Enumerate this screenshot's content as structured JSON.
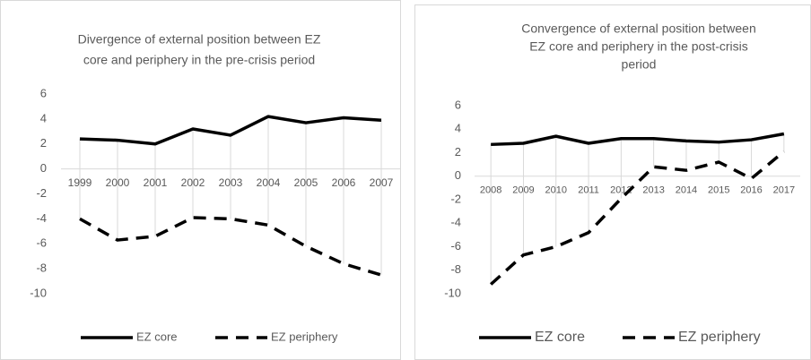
{
  "chart_data": [
    {
      "type": "line",
      "title": [
        "Divergence of external position between EZ",
        "core and periphery in the pre-crisis period"
      ],
      "categories": [
        "1999",
        "2000",
        "2001",
        "2002",
        "2003",
        "2004",
        "2005",
        "2006",
        "2007"
      ],
      "series": [
        {
          "name": "EZ core",
          "color": "#000000",
          "line_style": "solid",
          "values": [
            2.4,
            2.3,
            2.0,
            3.2,
            2.7,
            4.2,
            3.7,
            4.1,
            3.9
          ]
        },
        {
          "name": "EZ periphery",
          "color": "#000000",
          "line_style": "dashed",
          "values": [
            -4.0,
            -5.7,
            -5.4,
            -3.9,
            -4.0,
            -4.5,
            -6.2,
            -7.6,
            -8.5
          ]
        }
      ],
      "ylim": [
        -10,
        6
      ],
      "yticks": [
        -10,
        -8,
        -6,
        -4,
        -2,
        0,
        2,
        4,
        6
      ],
      "legend": "bottom"
    },
    {
      "type": "line",
      "title": [
        "Convergence of external position between",
        "EZ core and periphery in the post-crisis",
        "period"
      ],
      "categories": [
        "2008",
        "2009",
        "2010",
        "2011",
        "2012",
        "2013",
        "2014",
        "2015",
        "2016",
        "2017"
      ],
      "series": [
        {
          "name": "EZ core",
          "color": "#000000",
          "line_style": "solid",
          "values": [
            2.7,
            2.8,
            3.4,
            2.8,
            3.2,
            3.2,
            3.0,
            2.9,
            3.1,
            3.6
          ]
        },
        {
          "name": "EZ periphery",
          "color": "#000000",
          "line_style": "dashed",
          "values": [
            -9.2,
            -6.7,
            -6.0,
            -4.8,
            -1.9,
            0.8,
            0.5,
            1.2,
            -0.2,
            2.1
          ]
        }
      ],
      "ylim": [
        -10,
        6
      ],
      "yticks": [
        -10,
        -8,
        -6,
        -4,
        -2,
        0,
        2,
        4,
        6
      ],
      "legend": "bottom"
    }
  ]
}
